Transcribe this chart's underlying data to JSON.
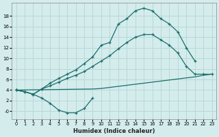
{
  "xlabel": "Humidex (Indice chaleur)",
  "background_color": "#d4ecec",
  "grid_color": "#b8d8d8",
  "line_color": "#1a6e6a",
  "xlim": [
    -0.5,
    23.5
  ],
  "ylim": [
    -1.5,
    20.5
  ],
  "xticks": [
    0,
    1,
    2,
    3,
    4,
    5,
    6,
    7,
    8,
    9,
    10,
    11,
    12,
    13,
    14,
    15,
    16,
    17,
    18,
    19,
    20,
    21,
    22,
    23
  ],
  "yticks": [
    0,
    2,
    4,
    6,
    8,
    10,
    12,
    14,
    16,
    18
  ],
  "ytick_labels": [
    "-0",
    "2",
    "4",
    "6",
    "8",
    "10",
    "12",
    "14",
    "16",
    "18"
  ],
  "curve_max": {
    "x": [
      0,
      1,
      2,
      3,
      4,
      5,
      6,
      7,
      8,
      9,
      10,
      11,
      12,
      13,
      14,
      15,
      16,
      17,
      18,
      19,
      20,
      21
    ],
    "y": [
      4,
      3.7,
      3.2,
      4.2,
      5.3,
      6.2,
      7.0,
      7.8,
      9.0,
      10.3,
      12.5,
      13.0,
      16.5,
      17.5,
      19.0,
      19.5,
      19.0,
      17.5,
      16.5,
      15.0,
      12.0,
      9.5
    ]
  },
  "curve_mean": {
    "x": [
      0,
      1,
      2,
      3,
      4,
      5,
      6,
      7,
      8,
      9,
      10,
      11,
      12,
      13,
      14,
      15,
      16,
      17,
      18,
      19,
      20,
      21,
      22,
      23
    ],
    "y": [
      4,
      3.7,
      3.2,
      4.2,
      4.8,
      5.5,
      6.2,
      6.8,
      7.5,
      8.5,
      9.5,
      10.5,
      11.8,
      13.0,
      14.0,
      14.5,
      14.5,
      13.5,
      12.5,
      11.0,
      8.5,
      7.0,
      7.0,
      7.0
    ]
  },
  "curve_min": {
    "x": [
      0,
      1,
      2,
      3,
      4,
      5,
      6,
      7,
      8,
      9
    ],
    "y": [
      4.0,
      3.7,
      3.2,
      2.5,
      1.5,
      0.2,
      -0.3,
      -0.3,
      0.5,
      2.5
    ]
  },
  "curve_bottom": {
    "x": [
      0,
      9,
      10,
      11,
      12,
      13,
      14,
      15,
      16,
      17,
      18,
      19,
      20,
      21,
      22,
      23
    ],
    "y": [
      4,
      4.2,
      4.3,
      4.5,
      4.7,
      4.9,
      5.1,
      5.3,
      5.5,
      5.7,
      5.9,
      6.1,
      6.3,
      6.5,
      6.8,
      7.0
    ]
  }
}
